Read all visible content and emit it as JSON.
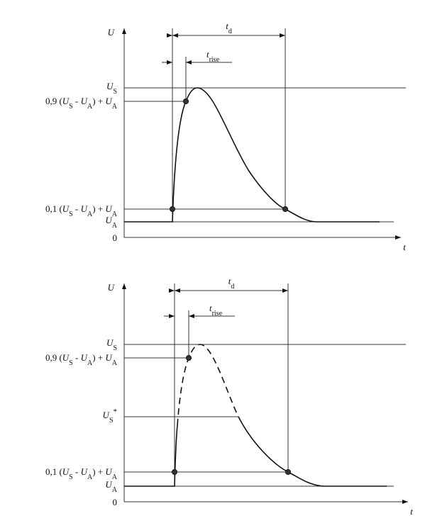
{
  "diagrams": [
    {
      "axis_y": "U",
      "axis_x": "t",
      "origin": "0",
      "t_d": {
        "symbol": "t",
        "sub": "d"
      },
      "t_rise": {
        "symbol": "t",
        "sub": "rise"
      },
      "u_s": {
        "symbol": "U",
        "sub": "S"
      },
      "level_90": {
        "prefix": "0,9 (",
        "u1": "U",
        "s1": "S",
        "minus": " - ",
        "u2": "U",
        "s2": "A",
        "plus": ") + ",
        "u3": "U",
        "s3": "A"
      },
      "level_10": {
        "prefix": "0,1 (",
        "u1": "U",
        "s1": "S",
        "minus": " - ",
        "u2": "U",
        "s2": "A",
        "plus": ") + ",
        "u3": "U",
        "s3": "A"
      },
      "u_a": {
        "symbol": "U",
        "sub": "A"
      }
    },
    {
      "axis_y": "U",
      "axis_x": "t",
      "origin": "0",
      "t_d": {
        "symbol": "t",
        "sub": "d"
      },
      "t_rise": {
        "symbol": "t",
        "sub": "rise"
      },
      "u_s": {
        "symbol": "U",
        "sub": "S"
      },
      "level_90": {
        "prefix": "0,9 (",
        "u1": "U",
        "s1": "S",
        "minus": " - ",
        "u2": "U",
        "s2": "A",
        "plus": ") + ",
        "u3": "U",
        "s3": "A"
      },
      "u_s_star": {
        "symbol": "U",
        "sub": "S",
        "star": "*"
      },
      "level_10": {
        "prefix": "0,1 (",
        "u1": "U",
        "s1": "S",
        "minus": " - ",
        "u2": "U",
        "s2": "A",
        "plus": ") + ",
        "u3": "U",
        "s3": "A"
      },
      "u_a": {
        "symbol": "U",
        "sub": "A"
      }
    }
  ]
}
